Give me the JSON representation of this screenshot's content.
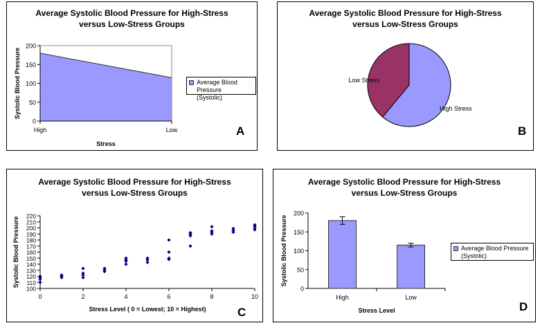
{
  "chart_data": [
    {
      "panel": "A",
      "type": "area",
      "title": "Average Systolic Blood Pressure for High-Stress versus Low-Stress Groups",
      "title_lines": [
        "Average Systolic Blood Pressure for High-Stress",
        "versus Low-Stress Groups"
      ],
      "xlabel": "Stress",
      "ylabel": "Systolic Blood Pressure",
      "categories": [
        "High",
        "Low"
      ],
      "series": [
        {
          "name": "Average Blood Pressure (Systolic)",
          "values": [
            180,
            115
          ]
        }
      ],
      "legend_lines": [
        "Average Blood Pressure",
        "(Systolic)"
      ],
      "ylim": [
        0,
        200
      ],
      "yticks": [
        0,
        50,
        100,
        150,
        200
      ],
      "grid": false,
      "legend": "right",
      "color": "#9999ff"
    },
    {
      "panel": "B",
      "type": "pie",
      "title": "Average Systolic Blood Pressure for High-Stress versus Low-Stress Groups",
      "title_lines": [
        "Average Systolic Blood Pressure for High-Stress",
        "versus Low-Stress Groups"
      ],
      "categories": [
        "High Stress",
        "Low Stress"
      ],
      "values": [
        180,
        115
      ],
      "colors": [
        "#9999ff",
        "#993366"
      ]
    },
    {
      "panel": "C",
      "type": "scatter",
      "title": "Average Systolic Blood Pressure for High-Stress versus Low-Stress Groups",
      "title_lines": [
        "Average Systolic Blood Pressure for High-Stress",
        "versus Low-Stress Groups"
      ],
      "xlabel": "Stress Level ( 0 = Lowest; 10 = Highest)",
      "ylabel": "Systolic Blood Pressure",
      "xlim": [
        0,
        10
      ],
      "ylim": [
        100,
        220
      ],
      "xticks": [
        0,
        2,
        4,
        6,
        8,
        10
      ],
      "yticks": [
        100,
        110,
        120,
        130,
        140,
        150,
        160,
        170,
        180,
        190,
        200,
        210,
        220
      ],
      "grid": false,
      "color": "#000080",
      "x": [
        0,
        0,
        0,
        0,
        1,
        1,
        1,
        2,
        2,
        2,
        2,
        3,
        3,
        3,
        4,
        4,
        4,
        4,
        5,
        5,
        5,
        6,
        6,
        6,
        6,
        7,
        7,
        7,
        7,
        8,
        8,
        8,
        8,
        9,
        9,
        9,
        10,
        10,
        10,
        10
      ],
      "y": [
        110,
        115,
        118,
        120,
        118,
        120,
        122,
        118,
        122,
        125,
        133,
        128,
        130,
        133,
        140,
        145,
        147,
        150,
        143,
        147,
        150,
        148,
        150,
        160,
        180,
        170,
        187,
        190,
        192,
        190,
        193,
        195,
        202,
        193,
        196,
        199,
        197,
        200,
        203,
        205
      ]
    },
    {
      "panel": "D",
      "type": "bar",
      "title": "Average Systolic Blood Pressure for High-Stress versus Low-Stress Groups",
      "title_lines": [
        "Average Systolic Blood Pressure for High-Stress",
        "versus Low-Stress Groups"
      ],
      "xlabel": "Stress Level",
      "ylabel": "Systolic Blood Pressure",
      "categories": [
        "High",
        "Low"
      ],
      "series": [
        {
          "name": "Average Blood Pressure (Systolic)",
          "values": [
            180,
            115
          ],
          "error": [
            10,
            5
          ]
        }
      ],
      "legend_lines": [
        "Average Blood Pressure",
        "(Systolic)"
      ],
      "ylim": [
        0,
        200
      ],
      "yticks": [
        0,
        50,
        100,
        150,
        200
      ],
      "grid": false,
      "legend": "right",
      "color": "#9999ff"
    }
  ]
}
